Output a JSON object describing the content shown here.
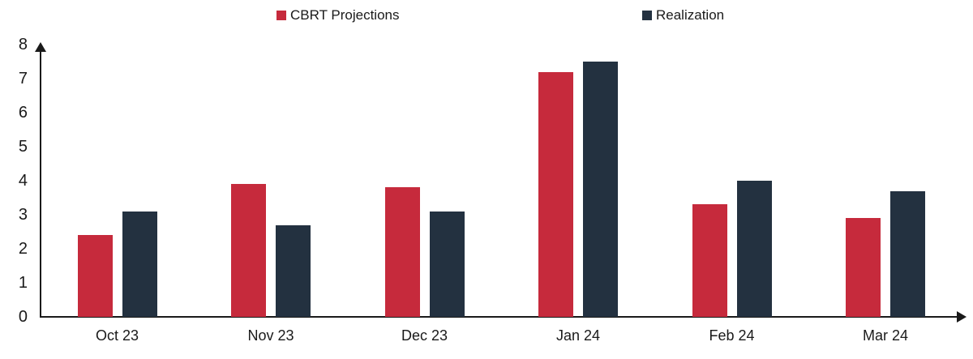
{
  "chart_data": {
    "type": "bar",
    "title": "",
    "categories": [
      "Oct 23",
      "Nov 23",
      "Dec 23",
      "Jan 24",
      "Feb 24",
      "Mar 24"
    ],
    "series": [
      {
        "name": "CBRT Projections",
        "color": "#C62A3C",
        "values": [
          2.4,
          3.9,
          3.8,
          7.2,
          3.3,
          2.9
        ]
      },
      {
        "name": "Realization",
        "color": "#233140",
        "values": [
          3.1,
          2.7,
          3.1,
          7.5,
          4.0,
          3.7
        ]
      }
    ],
    "xlabel": "",
    "ylabel": "",
    "ylim": [
      0,
      8
    ],
    "yticks": [
      0,
      1,
      2,
      3,
      4,
      5,
      6,
      7,
      8
    ],
    "grid": false,
    "legend_position": "top",
    "axis_color": "#1a1a1a",
    "text_color": "#1a1a1a",
    "background_color": "#ffffff"
  }
}
